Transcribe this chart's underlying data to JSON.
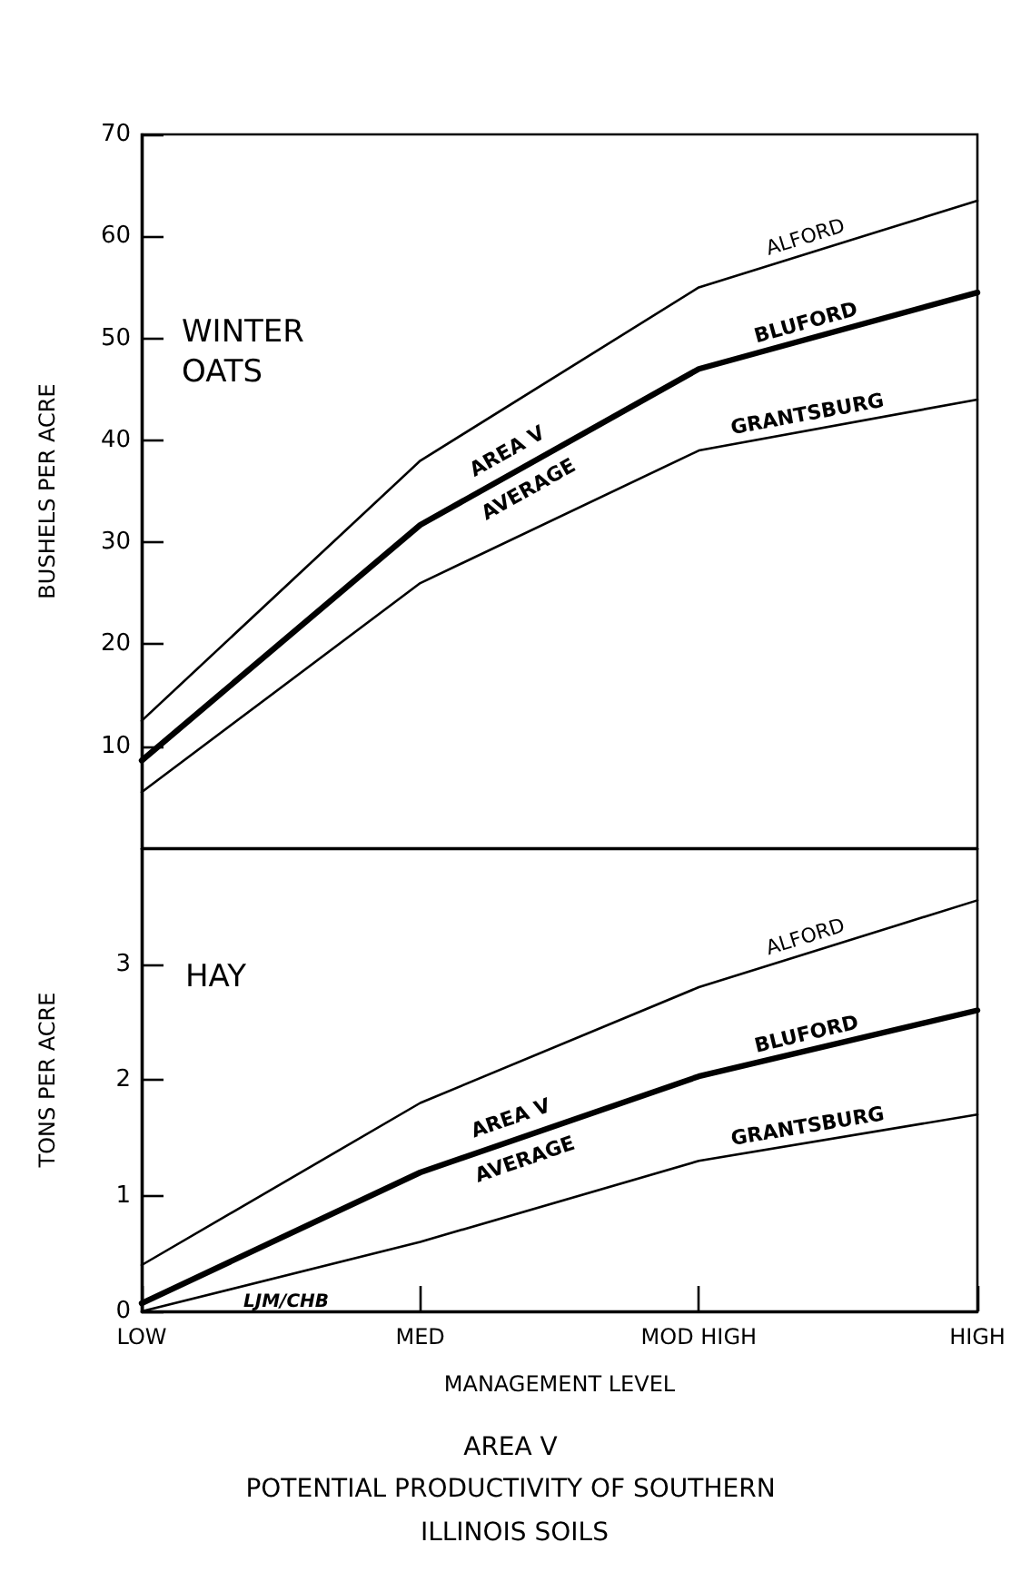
{
  "chart_data": [
    {
      "type": "line",
      "ylabel": "BUSHELS PER ACRE",
      "categories": [
        "LOW",
        "MED",
        "MOD HIGH",
        "HIGH"
      ],
      "series": [
        {
          "name": "ALFORD",
          "color": "#000000",
          "values": [
            12.5,
            38,
            55,
            63.5
          ]
        },
        {
          "name": "BLUFORD",
          "color": "#000000",
          "values": [
            8.6,
            31.7,
            47,
            54.5
          ]
        },
        {
          "name": "GRANTSBURG",
          "color": "#000000",
          "values": [
            5.5,
            26,
            39,
            44
          ]
        }
      ],
      "ylim": [
        0,
        70
      ],
      "yticks": [
        10,
        20,
        30,
        40,
        50,
        60,
        70
      ],
      "tick_labels": "y",
      "grid": false,
      "legend": false,
      "marker": "none",
      "line_style": "solid",
      "annotations": [
        "WINTER OATS",
        "AREA V AVERAGE"
      ]
    },
    {
      "type": "line",
      "ylabel": "TONS PER ACRE",
      "xlabel": "MANAGEMENT LEVEL",
      "title": "AREA V",
      "subtitle": "POTENTIAL PRODUCTIVITY OF SOUTHERN ILLINOIS SOILS",
      "categories": [
        "LOW",
        "MED",
        "MOD HIGH",
        "HIGH"
      ],
      "series": [
        {
          "name": "ALFORD",
          "color": "#000000",
          "values": [
            0.4,
            1.8,
            2.8,
            3.55
          ]
        },
        {
          "name": "BLUFORD",
          "color": "#000000",
          "values": [
            0.07,
            1.2,
            2.03,
            2.6
          ]
        },
        {
          "name": "GRANTSBURG",
          "color": "#000000",
          "values": [
            0,
            0.6,
            1.3,
            1.7
          ]
        }
      ],
      "ylim": [
        0,
        4
      ],
      "yticks": [
        0,
        1,
        2,
        3
      ],
      "grid": false,
      "legend": false,
      "marker": "none",
      "line_style": "solid",
      "annotations": [
        "HAY",
        "AREA V AVERAGE",
        "LJM/CHB"
      ]
    }
  ]
}
